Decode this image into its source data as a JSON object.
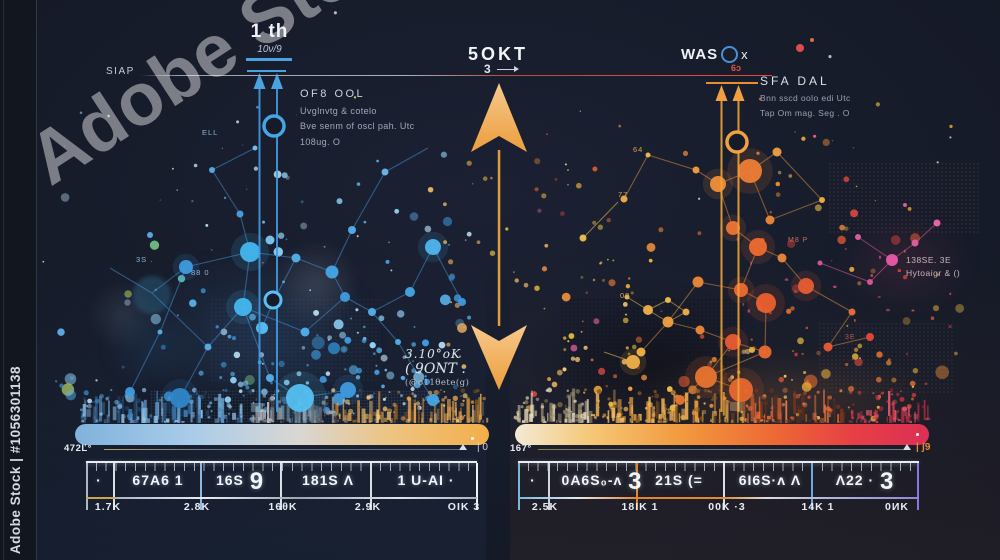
{
  "watermark": {
    "diagonal": "Adobe Stock",
    "id_label": "Adobe Stock | #1056301138"
  },
  "left_panel": {
    "callout": "SIAP",
    "marker": {
      "title": "1 th",
      "subtitle": "10ν/9"
    },
    "info": {
      "heading": "OF8 OOL",
      "lines": [
        "Uvglnvtg & cotelo",
        "Bve senm of oscl pah. Utc",
        "108ug. O"
      ]
    },
    "annotations": [
      "ELL",
      "3S .",
      "88 0"
    ],
    "scale": {
      "label": "472Ľ°",
      "end": "| 0"
    },
    "ruler": {
      "cells": [
        {
          "text": "·"
        },
        {
          "text": "67A6 1"
        },
        {
          "text": "16S",
          "big": "9"
        },
        {
          "text": "181S Λ"
        },
        {
          "text": "1 U-AI ·"
        }
      ],
      "labels": [
        "1.7K",
        "2.8K",
        "16θK",
        "2.9K",
        "OIK 3"
      ]
    }
  },
  "center": {
    "title": "5OKT",
    "subtitle": "3",
    "note_lines": [
      "3.10°oK",
      "( 9ONT .",
      "(@o11θete(g)"
    ]
  },
  "right_panel": {
    "marker": {
      "pre": "WAS",
      "o": "O",
      "post": "x",
      "tag": "6ɔ"
    },
    "info": {
      "heading": "SFA DAL",
      "lines": [
        "Bnn sscd oolo edi Utc",
        "Tap Om mag. Seg . O"
      ]
    },
    "side_note": [
      "138SE. 3E",
      "Hytoaigr & ()"
    ],
    "annotations": [
      "64",
      "77",
      "09",
      "M8 P",
      "3E"
    ],
    "scale": {
      "label": "167°",
      "end": "| ʃ9"
    },
    "ruler": {
      "cells": [
        {
          "text": "·"
        },
        {
          "text": "0A6S₀-ʌ",
          "big": "3"
        },
        {
          "text": "21S (="
        },
        {
          "text": "6I6S·ʌ Λ"
        },
        {
          "text": "Λ22 ·",
          "big": "3"
        }
      ],
      "labels": [
        "2.5K",
        "18IK 1",
        "00K ·3",
        "14K 1",
        "0ИK"
      ]
    }
  },
  "colors": {
    "background": "#161b29",
    "blue": "#3f9be0",
    "light_blue": "#8fd0f5",
    "orange": "#efa335",
    "red": "#e0493f",
    "crimson": "#d92b55",
    "pink": "#e858a8",
    "yellow": "#f0c040"
  }
}
